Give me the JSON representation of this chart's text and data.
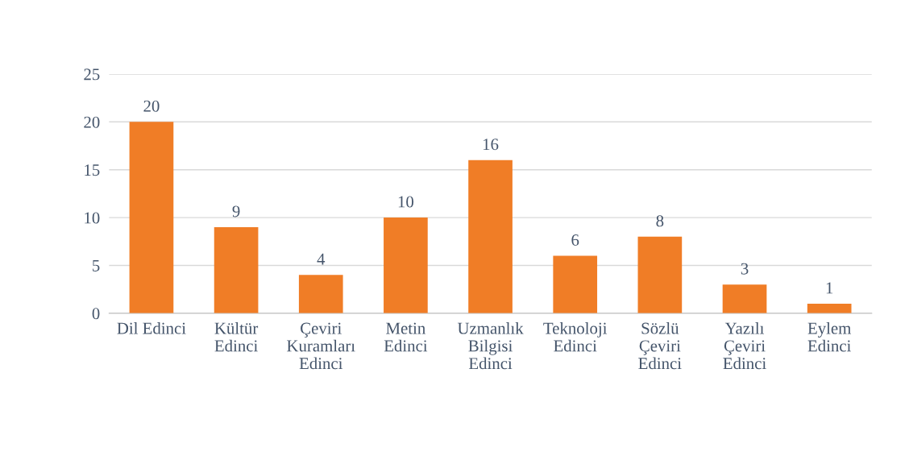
{
  "chart_data": {
    "type": "bar",
    "categories": [
      "Dil Edinci",
      "Kültür\nEdinci",
      "Çeviri\nKuramları\nEdinci",
      "Metin\nEdinci",
      "Uzmanlık\nBilgisi\nEdinci",
      "Teknoloji\nEdinci",
      "Sözlü\nÇeviri\nEdinci",
      "Yazılı\nÇeviri\nEdinci",
      "Eylem\nEdinci"
    ],
    "values": [
      20,
      9,
      4,
      10,
      16,
      6,
      8,
      3,
      1
    ],
    "color": "#f07d26",
    "ylim": [
      0,
      25
    ],
    "yticks": [
      0,
      5,
      10,
      15,
      20,
      25
    ],
    "grid": "y",
    "data_labels": true
  }
}
